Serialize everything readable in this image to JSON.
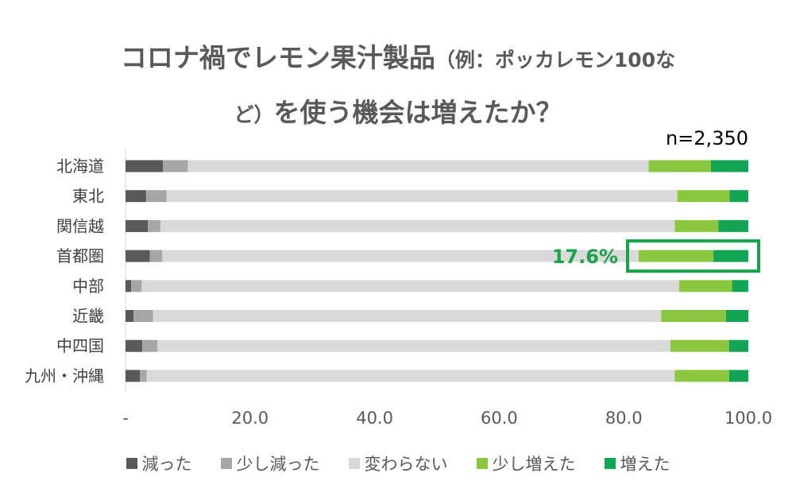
{
  "title": {
    "line1_main": "コロナ禍でレモン果汁製品",
    "line1_paren": "（例：ポッカレモン100な",
    "line2_paren": "ど）",
    "line2_main": "を使う機会は増えたか？"
  },
  "note": "n=2,350",
  "highlight": {
    "label": "17.6%",
    "color": "#16a34a"
  },
  "colors": [
    "#595959",
    "#a6a6a6",
    "#d9d9d9",
    "#8bc63f",
    "#12a553"
  ],
  "chart_data": {
    "type": "bar",
    "orientation": "horizontal",
    "stacked": true,
    "categories": [
      "北海道",
      "東北",
      "関信越",
      "首都圏",
      "中部",
      "近畿",
      "中四国",
      "九州・沖縄"
    ],
    "series": [
      {
        "name": "減った",
        "values": [
          6.0,
          3.3,
          3.6,
          3.9,
          0.9,
          1.3,
          2.7,
          2.3
        ]
      },
      {
        "name": "少し減った",
        "values": [
          4.0,
          3.3,
          2.0,
          2.0,
          1.7,
          3.1,
          2.4,
          1.1
        ]
      },
      {
        "name": "変わらない",
        "values": [
          74.0,
          82.0,
          82.6,
          76.5,
          86.3,
          81.6,
          82.4,
          84.8
        ]
      },
      {
        "name": "少し増えた",
        "values": [
          10.0,
          8.4,
          7.0,
          12.0,
          8.5,
          10.4,
          9.4,
          8.7
        ]
      },
      {
        "name": "増えた",
        "values": [
          6.0,
          3.0,
          4.8,
          5.6,
          2.6,
          3.6,
          3.1,
          3.1
        ]
      }
    ],
    "xaxis_ticks": [
      "-",
      "20.0",
      "40.0",
      "60.0",
      "80.0",
      "100.0"
    ],
    "xlim": [
      0,
      100
    ],
    "grid": false,
    "legend_position": "bottom"
  }
}
